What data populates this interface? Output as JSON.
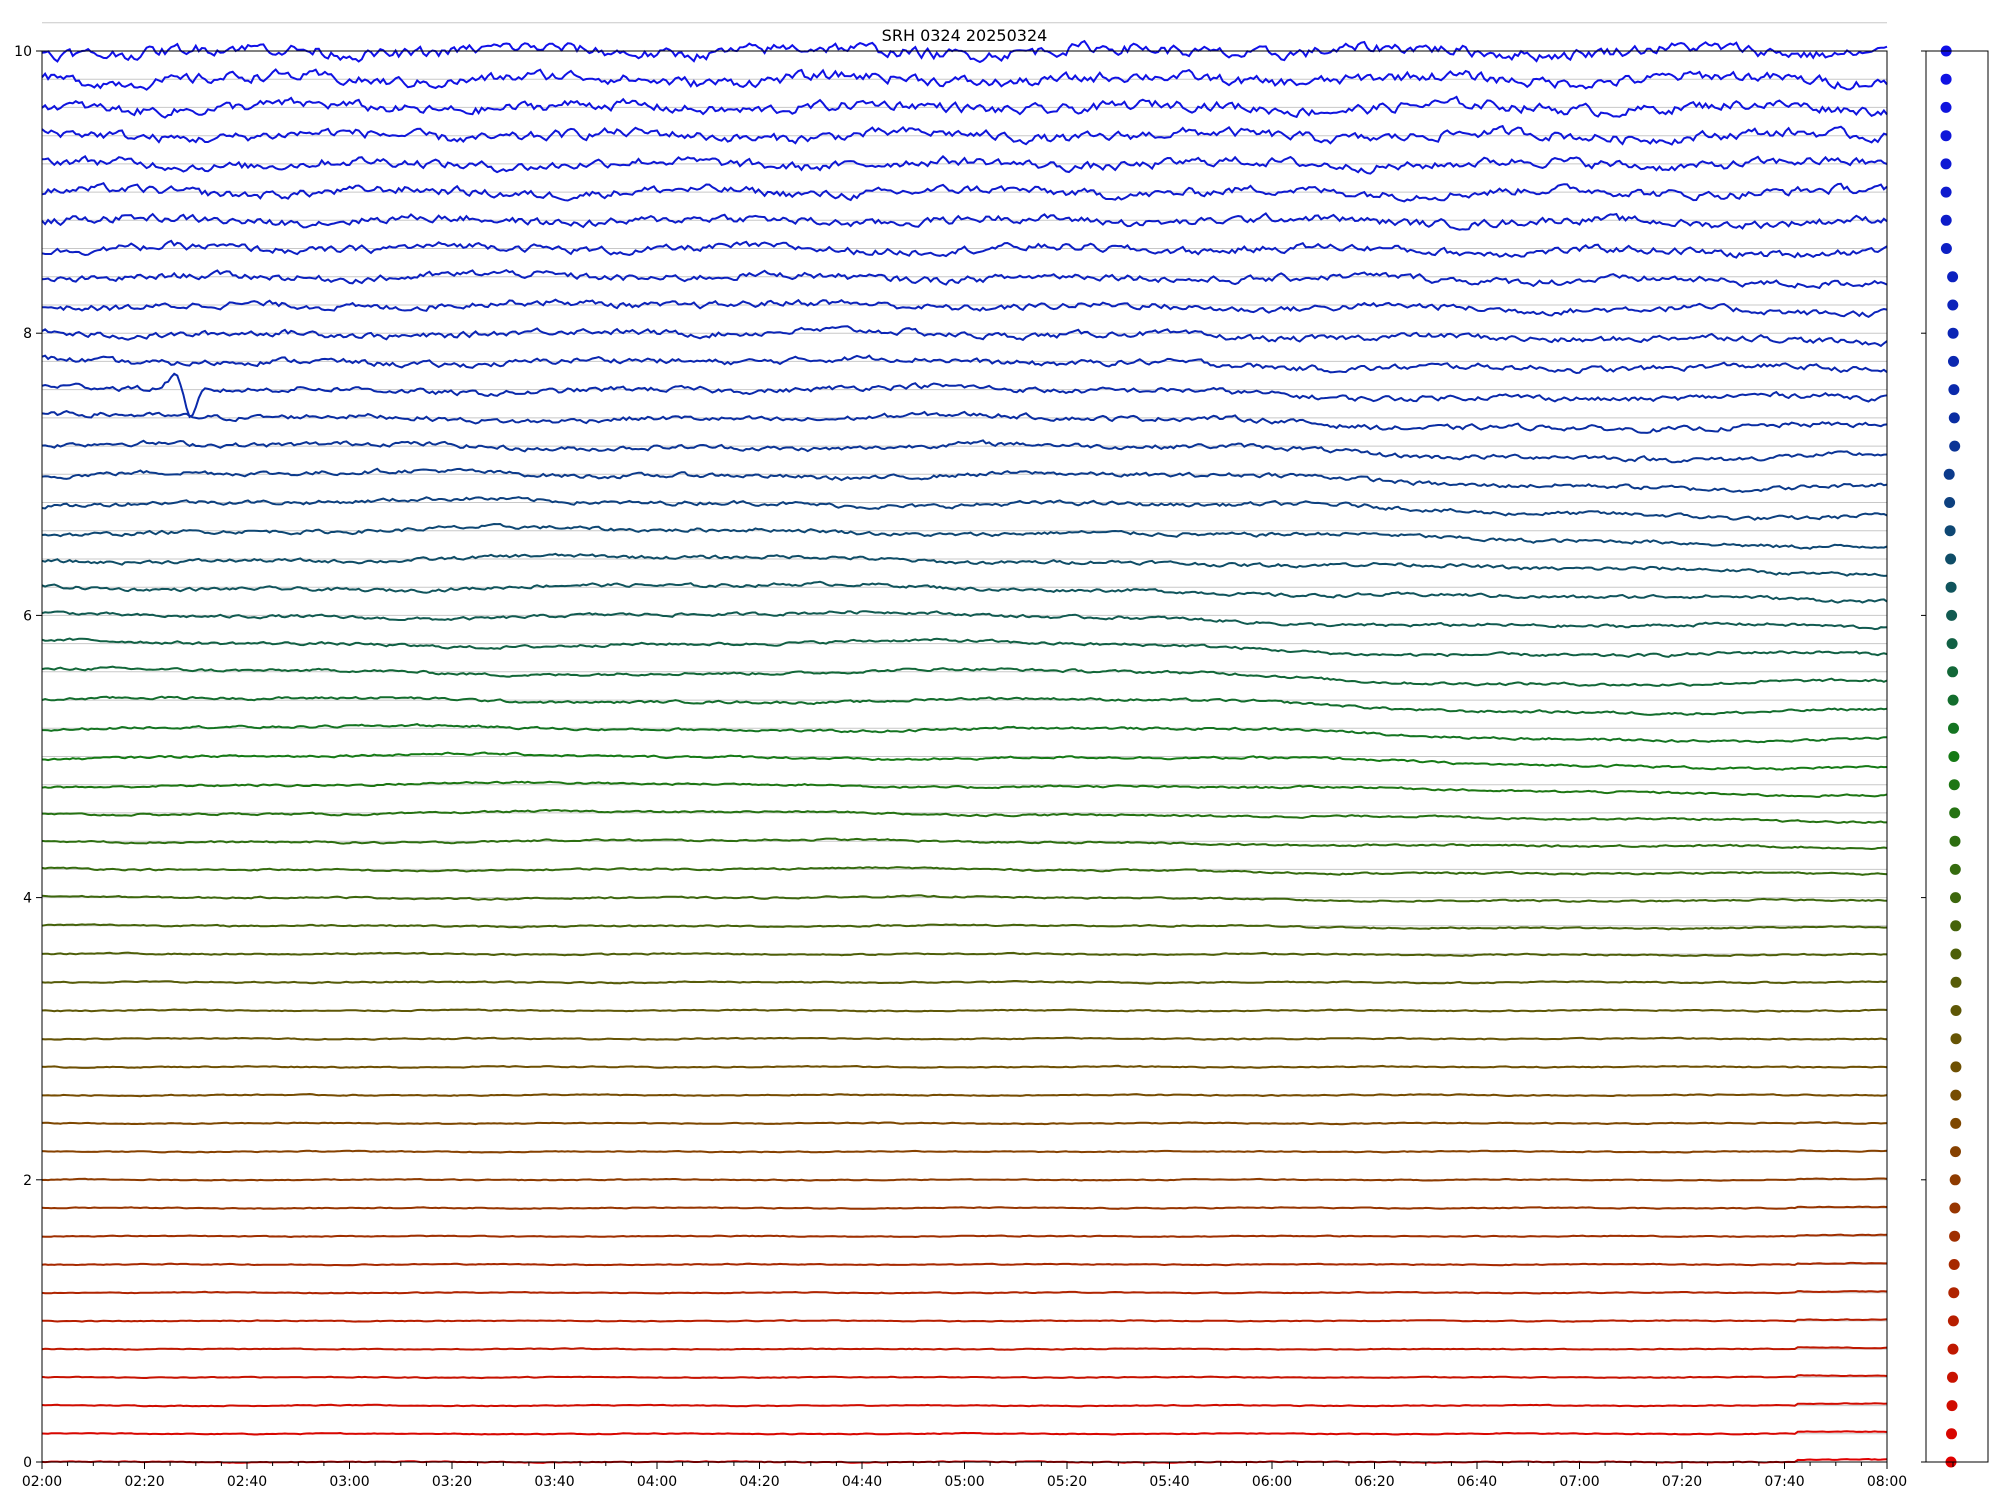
{
  "chart_data": {
    "type": "line",
    "title": "SRH 0324 20250324",
    "xlabel": "",
    "ylabel": "",
    "x_ticks": [
      "02:00",
      "02:20",
      "02:40",
      "03:00",
      "03:20",
      "03:40",
      "04:00",
      "04:20",
      "04:40",
      "05:00",
      "05:20",
      "05:40",
      "06:00",
      "06:20",
      "06:40",
      "07:00",
      "07:20",
      "07:40",
      "08:00"
    ],
    "xlim": [
      "02:00",
      "08:00"
    ],
    "y_ticks": [
      "0",
      "2",
      "4",
      "6",
      "8",
      "10"
    ],
    "ylim": [
      0,
      10
    ],
    "grid": "horizontal",
    "series_count": 51,
    "series_offset_step": 0.2,
    "color_ramp": [
      "#e00000",
      "#7a4a00",
      "#157a15",
      "#0a2aa8",
      "#1010e8"
    ],
    "side_panel": {
      "description": "series baseline markers",
      "ylim": [
        0,
        10
      ]
    }
  }
}
